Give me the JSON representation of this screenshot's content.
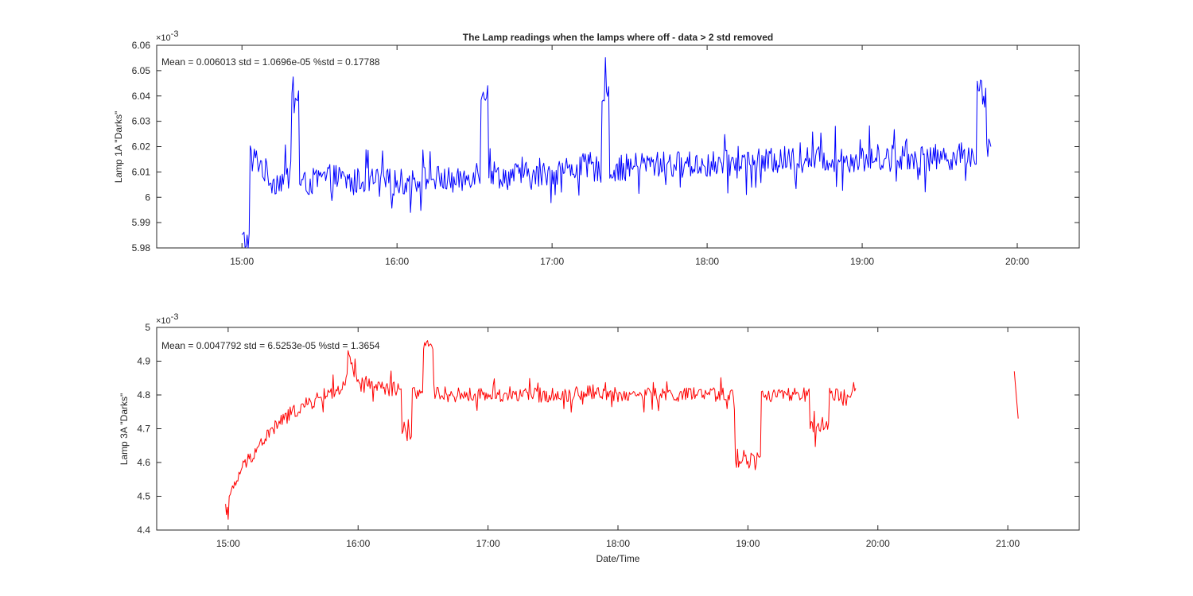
{
  "chart_data": [
    {
      "type": "line",
      "title": "The Lamp readings when the lamps where off - data > 2 std removed",
      "ylabel": "Lamp 1A \"Darks\"",
      "xlabel": "",
      "annotation": "Mean = 0.006013  std = 1.0696e-05  %std = 0.17788",
      "y_scale_label": "×10",
      "y_scale_exponent": "-3",
      "x_unit": "hours",
      "xlim": [
        14.45,
        20.4
      ],
      "ylim": [
        5.98,
        6.06
      ],
      "x_ticks": [
        15,
        16,
        17,
        18,
        19,
        20
      ],
      "x_tick_labels": [
        "15:00",
        "16:00",
        "17:00",
        "18:00",
        "19:00",
        "20:00"
      ],
      "y_ticks": [
        5.98,
        5.99,
        6.0,
        6.01,
        6.02,
        6.03,
        6.04,
        6.05,
        6.06
      ],
      "y_tick_labels": [
        "5.98",
        "5.99",
        "6",
        "6.01",
        "6.02",
        "6.03",
        "6.04",
        "6.05",
        "6.06"
      ],
      "grid": false,
      "series": [
        {
          "name": "Lamp 1A",
          "color": "#0000ff",
          "segments": [
            {
              "x": [
                15.0,
                15.1,
                15.2,
                15.3,
                15.33,
                15.4,
                15.5,
                15.6,
                15.7,
                15.8,
                15.9,
                16.0,
                16.1,
                16.2,
                16.3,
                16.4,
                16.5,
                16.57,
                16.6,
                16.7,
                16.8,
                16.9,
                17.0,
                17.1,
                17.2,
                17.3,
                17.33,
                17.4,
                17.5,
                17.6,
                17.7,
                17.8,
                17.9,
                18.0,
                18.1,
                18.2,
                18.3,
                18.4,
                18.5,
                18.6,
                18.7,
                18.8,
                18.9,
                19.0,
                19.1,
                19.2,
                19.3,
                19.4,
                19.5,
                19.6,
                19.7,
                19.77,
                19.83
              ],
              "y": [
                5.983,
                6.015,
                6.006,
                6.008,
                6.04,
                6.005,
                6.007,
                6.008,
                6.006,
                6.007,
                6.006,
                6.006,
                6.006,
                6.008,
                6.007,
                6.006,
                6.01,
                6.042,
                6.01,
                6.008,
                6.009,
                6.008,
                6.01,
                6.011,
                6.012,
                6.011,
                6.042,
                6.011,
                6.012,
                6.013,
                6.013,
                6.013,
                6.013,
                6.013,
                6.013,
                6.014,
                6.014,
                6.014,
                6.015,
                6.015,
                6.015,
                6.015,
                6.015,
                6.015,
                6.016,
                6.016,
                6.016,
                6.015,
                6.016,
                6.016,
                6.017,
                6.042,
                6.02
              ]
            }
          ]
        }
      ]
    },
    {
      "type": "line",
      "title": "",
      "ylabel": "Lamp 3A \"Darks\"",
      "xlabel": "Date/Time",
      "annotation": "Mean = 0.0047792  std = 6.5253e-05  %std = 1.3654",
      "y_scale_label": "×10",
      "y_scale_exponent": "-3",
      "x_unit": "hours",
      "xlim": [
        14.45,
        21.55
      ],
      "ylim": [
        4.4,
        5.0
      ],
      "x_ticks": [
        15,
        16,
        17,
        18,
        19,
        20,
        21
      ],
      "x_tick_labels": [
        "15:00",
        "16:00",
        "17:00",
        "18:00",
        "19:00",
        "20:00",
        "21:00"
      ],
      "y_ticks": [
        4.4,
        4.5,
        4.6,
        4.7,
        4.8,
        4.9,
        5.0
      ],
      "y_tick_labels": [
        "4.4",
        "4.5",
        "4.6",
        "4.7",
        "4.8",
        "4.9",
        "5"
      ],
      "grid": false,
      "series": [
        {
          "name": "Lamp 3A",
          "color": "#ff0000",
          "segments": [
            {
              "x": [
                14.98,
                15.0,
                15.05,
                15.1,
                15.2,
                15.3,
                15.4,
                15.5,
                15.6,
                15.7,
                15.8,
                15.9,
                15.93,
                16.0,
                16.1,
                16.2,
                16.3,
                16.37,
                16.45,
                16.55,
                16.6,
                16.7,
                16.9,
                17.0,
                17.2,
                17.4,
                17.6,
                17.8,
                18.0,
                18.2,
                18.4,
                18.6,
                18.8,
                19.0,
                19.2,
                19.4,
                19.55,
                19.7,
                19.83
              ],
              "y": [
                4.45,
                4.48,
                4.53,
                4.58,
                4.63,
                4.68,
                4.72,
                4.75,
                4.77,
                4.79,
                4.81,
                4.82,
                4.91,
                4.83,
                4.83,
                4.82,
                4.82,
                4.68,
                4.81,
                4.94,
                4.81,
                4.8,
                4.8,
                4.8,
                4.8,
                4.8,
                4.8,
                4.81,
                4.8,
                4.8,
                4.8,
                4.8,
                4.8,
                4.61,
                4.8,
                4.8,
                4.7,
                4.8,
                4.82
              ]
            },
            {
              "x": [
                21.05,
                21.08
              ],
              "y": [
                4.87,
                4.73
              ]
            }
          ]
        }
      ]
    }
  ]
}
